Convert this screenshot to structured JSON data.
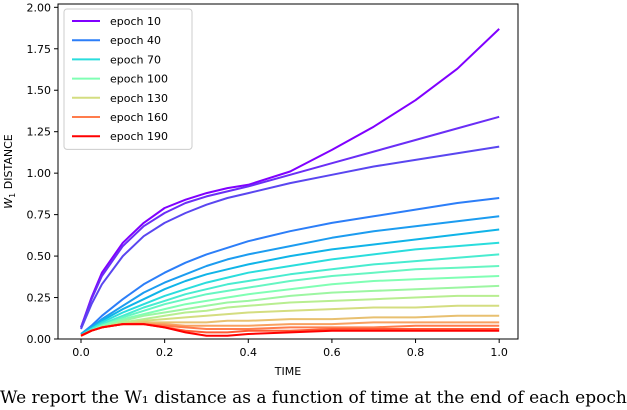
{
  "chart_data": {
    "type": "line",
    "title": "",
    "xlabel": "TIME",
    "ylabel_main": "W",
    "ylabel_sub": "1",
    "ylabel_rest": " DISTANCE",
    "xlim": [
      -0.055,
      1.045
    ],
    "ylim": [
      0.0,
      2.02
    ],
    "x_ticks": [
      "0.0",
      "0.2",
      "0.4",
      "0.6",
      "0.8",
      "1.0"
    ],
    "x_tick_values": [
      0.0,
      0.2,
      0.4,
      0.6,
      0.8,
      1.0
    ],
    "y_ticks": [
      "0.00",
      "0.25",
      "0.50",
      "0.75",
      "1.00",
      "1.25",
      "1.50",
      "1.75",
      "2.00"
    ],
    "y_tick_values": [
      0.0,
      0.25,
      0.5,
      0.75,
      1.0,
      1.25,
      1.5,
      1.75,
      2.0
    ],
    "legend_position": "top-left",
    "x": [
      0.0,
      0.025,
      0.05,
      0.1,
      0.15,
      0.2,
      0.25,
      0.3,
      0.35,
      0.4,
      0.5,
      0.6,
      0.7,
      0.8,
      0.9,
      1.0
    ],
    "series": [
      {
        "name": "epoch 10",
        "legend": true,
        "color": "#8000ff",
        "values": [
          0.07,
          0.25,
          0.4,
          0.58,
          0.7,
          0.79,
          0.84,
          0.88,
          0.91,
          0.93,
          1.01,
          1.14,
          1.28,
          1.44,
          1.63,
          1.87
        ]
      },
      {
        "name": "",
        "legend": false,
        "color": "#6a2ef6",
        "values": [
          0.07,
          0.24,
          0.38,
          0.56,
          0.68,
          0.76,
          0.82,
          0.86,
          0.89,
          0.92,
          0.99,
          1.06,
          1.13,
          1.2,
          1.27,
          1.34
        ]
      },
      {
        "name": "",
        "legend": false,
        "color": "#5a46f0",
        "values": [
          0.06,
          0.21,
          0.33,
          0.5,
          0.62,
          0.7,
          0.76,
          0.81,
          0.85,
          0.88,
          0.94,
          0.99,
          1.04,
          1.08,
          1.12,
          1.16
        ]
      },
      {
        "name": "epoch 40",
        "legend": true,
        "color": "#2c7ef8",
        "values": [
          0.03,
          0.08,
          0.14,
          0.24,
          0.33,
          0.4,
          0.46,
          0.51,
          0.55,
          0.59,
          0.65,
          0.7,
          0.74,
          0.78,
          0.82,
          0.85
        ]
      },
      {
        "name": "",
        "legend": false,
        "color": "#1c9cf0",
        "values": [
          0.03,
          0.07,
          0.12,
          0.2,
          0.28,
          0.34,
          0.39,
          0.44,
          0.48,
          0.51,
          0.56,
          0.61,
          0.65,
          0.68,
          0.71,
          0.74
        ]
      },
      {
        "name": "",
        "legend": false,
        "color": "#10b4e8",
        "values": [
          0.03,
          0.07,
          0.11,
          0.18,
          0.24,
          0.3,
          0.35,
          0.39,
          0.42,
          0.45,
          0.5,
          0.54,
          0.57,
          0.6,
          0.63,
          0.66
        ]
      },
      {
        "name": "epoch 70",
        "legend": true,
        "color": "#2adddd",
        "values": [
          0.02,
          0.06,
          0.1,
          0.16,
          0.21,
          0.26,
          0.3,
          0.34,
          0.37,
          0.4,
          0.44,
          0.48,
          0.51,
          0.54,
          0.56,
          0.58
        ]
      },
      {
        "name": "",
        "legend": false,
        "color": "#48ecd0",
        "values": [
          0.02,
          0.06,
          0.09,
          0.14,
          0.19,
          0.23,
          0.27,
          0.3,
          0.33,
          0.35,
          0.39,
          0.42,
          0.45,
          0.47,
          0.49,
          0.51
        ]
      },
      {
        "name": "",
        "legend": false,
        "color": "#66f6c2",
        "values": [
          0.02,
          0.05,
          0.08,
          0.13,
          0.17,
          0.21,
          0.24,
          0.27,
          0.29,
          0.31,
          0.35,
          0.38,
          0.4,
          0.42,
          0.43,
          0.44
        ]
      },
      {
        "name": "epoch 100",
        "legend": true,
        "color": "#80ffb4",
        "values": [
          0.02,
          0.05,
          0.08,
          0.12,
          0.15,
          0.18,
          0.21,
          0.23,
          0.25,
          0.27,
          0.3,
          0.33,
          0.35,
          0.36,
          0.37,
          0.38
        ]
      },
      {
        "name": "",
        "legend": false,
        "color": "#9cf6a2",
        "values": [
          0.02,
          0.05,
          0.07,
          0.11,
          0.14,
          0.16,
          0.18,
          0.2,
          0.22,
          0.23,
          0.26,
          0.28,
          0.29,
          0.3,
          0.31,
          0.32
        ]
      },
      {
        "name": "",
        "legend": false,
        "color": "#b8ee90",
        "values": [
          0.02,
          0.05,
          0.07,
          0.1,
          0.12,
          0.14,
          0.16,
          0.17,
          0.19,
          0.2,
          0.22,
          0.23,
          0.24,
          0.25,
          0.26,
          0.26
        ]
      },
      {
        "name": "epoch 130",
        "legend": true,
        "color": "#d4dd80",
        "values": [
          0.02,
          0.05,
          0.07,
          0.09,
          0.11,
          0.12,
          0.13,
          0.14,
          0.15,
          0.16,
          0.17,
          0.18,
          0.19,
          0.19,
          0.2,
          0.2
        ]
      },
      {
        "name": "",
        "legend": false,
        "color": "#e8c070",
        "values": [
          0.02,
          0.05,
          0.07,
          0.09,
          0.1,
          0.1,
          0.1,
          0.1,
          0.11,
          0.11,
          0.12,
          0.12,
          0.13,
          0.13,
          0.14,
          0.14
        ]
      },
      {
        "name": "",
        "legend": false,
        "color": "#f8a060",
        "values": [
          0.02,
          0.05,
          0.07,
          0.09,
          0.09,
          0.09,
          0.08,
          0.08,
          0.08,
          0.08,
          0.09,
          0.09,
          0.1,
          0.1,
          0.1,
          0.1
        ]
      },
      {
        "name": "epoch 160",
        "legend": true,
        "color": "#ff7c4c",
        "values": [
          0.02,
          0.05,
          0.07,
          0.09,
          0.09,
          0.08,
          0.07,
          0.06,
          0.06,
          0.06,
          0.07,
          0.07,
          0.07,
          0.08,
          0.08,
          0.08
        ]
      },
      {
        "name": "",
        "legend": false,
        "color": "#ff5a34",
        "values": [
          0.02,
          0.05,
          0.07,
          0.09,
          0.09,
          0.07,
          0.05,
          0.04,
          0.04,
          0.05,
          0.05,
          0.06,
          0.06,
          0.06,
          0.06,
          0.06
        ]
      },
      {
        "name": "epoch 190",
        "legend": true,
        "color": "#ff0000",
        "values": [
          0.02,
          0.05,
          0.07,
          0.09,
          0.09,
          0.07,
          0.04,
          0.02,
          0.02,
          0.03,
          0.04,
          0.05,
          0.05,
          0.05,
          0.05,
          0.05
        ]
      }
    ]
  },
  "caption": "We report the W₁ distance as a function of time at the end of each epoch"
}
